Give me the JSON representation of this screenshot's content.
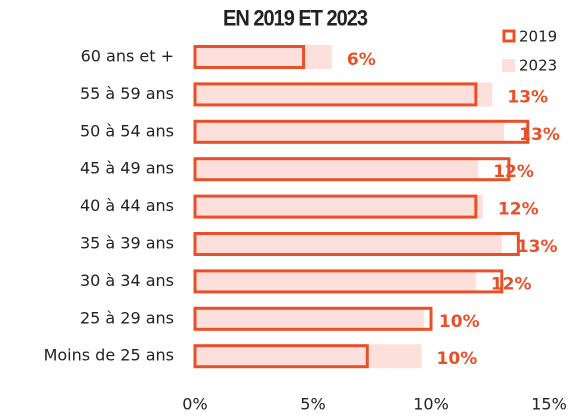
{
  "chart_data": {
    "type": "bar",
    "orientation": "horizontal",
    "title": "EN 2019 ET 2023",
    "categories": [
      "60 ans et +",
      "55 à 59 ans",
      "50 à 54 ans",
      "45 à 49 ans",
      "40 à 44 ans",
      "35 à 39 ans",
      "30 à 34 ans",
      "25 à 29 ans",
      "Moins de 25 ans"
    ],
    "series": [
      {
        "name": "2019",
        "color": "#e8502a",
        "style": "outline",
        "values": [
          4.6,
          11.9,
          14.1,
          13.3,
          11.9,
          13.7,
          13.0,
          10.0,
          7.3
        ]
      },
      {
        "name": "2023",
        "color": "#fde0dc",
        "style": "fill",
        "values": [
          5.8,
          12.6,
          13.1,
          12.0,
          12.2,
          13.0,
          11.9,
          9.7,
          9.6
        ],
        "value_labels": [
          "6%",
          "13%",
          "13%",
          "12%",
          "12%",
          "13%",
          "12%",
          "10%",
          "10%"
        ],
        "label_color": "#e8502a"
      }
    ],
    "xlim": [
      0,
      15
    ],
    "xticks": [
      {
        "value": 0,
        "label": "0%"
      },
      {
        "value": 5,
        "label": "5%"
      },
      {
        "value": 10,
        "label": "10%"
      },
      {
        "value": 15,
        "label": "15%"
      }
    ],
    "legend": "upper right"
  }
}
